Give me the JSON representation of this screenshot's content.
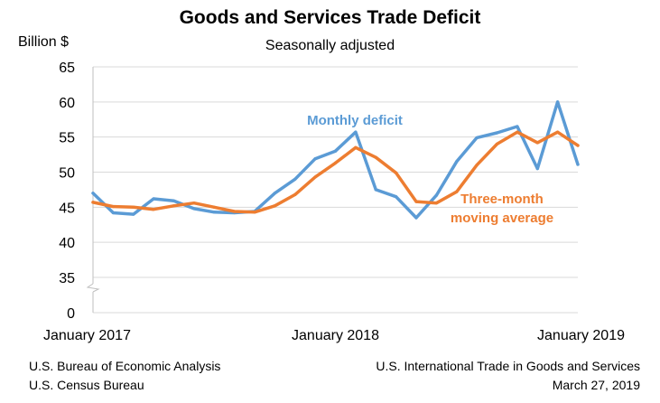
{
  "header": {
    "title": "Goods and Services Trade Deficit",
    "subtitle": "Seasonally adjusted",
    "ylabel": "Billion $"
  },
  "footer": {
    "left_line1": "U.S. Bureau of Economic Analysis",
    "left_line2": "U.S. Census Bureau",
    "right_line1": "U.S. International Trade in Goods and Services",
    "right_line2": "March 27, 2019"
  },
  "chart_data": {
    "type": "line",
    "title": "Goods and Services Trade Deficit",
    "subtitle": "Seasonally adjusted",
    "ylabel": "Billion $",
    "ylim": [
      0,
      65
    ],
    "axis_break": [
      0,
      35
    ],
    "yticks": [
      0,
      35,
      40,
      45,
      50,
      55,
      60,
      65
    ],
    "x_tick_labels": [
      {
        "index": 0,
        "label": "January 2017"
      },
      {
        "index": 12,
        "label": "January 2018"
      },
      {
        "index": 24,
        "label": "January 2019"
      }
    ],
    "grid": true,
    "colors": {
      "monthly": "#5B9BD5",
      "average": "#ED7D31",
      "grid": "#d9d9d9"
    },
    "series": [
      {
        "name": "Monthly deficit",
        "label_lines": [
          "Monthly deficit"
        ],
        "values": [
          47.0,
          44.2,
          44.0,
          46.2,
          45.9,
          44.8,
          44.3,
          44.2,
          44.4,
          47.0,
          49.0,
          51.9,
          53.0,
          55.7,
          47.5,
          46.5,
          43.5,
          46.7,
          51.5,
          54.9,
          55.6,
          56.5,
          50.5,
          60.0,
          51.1
        ]
      },
      {
        "name": "Three-month moving average",
        "label_lines": [
          "Three-month",
          "moving average"
        ],
        "values": [
          45.7,
          45.1,
          45.0,
          44.7,
          45.2,
          45.6,
          45.0,
          44.4,
          44.3,
          45.2,
          46.8,
          49.3,
          51.3,
          53.5,
          52.1,
          49.9,
          45.8,
          45.6,
          47.2,
          51.0,
          54.0,
          55.7,
          54.2,
          55.7,
          53.8
        ]
      }
    ]
  }
}
